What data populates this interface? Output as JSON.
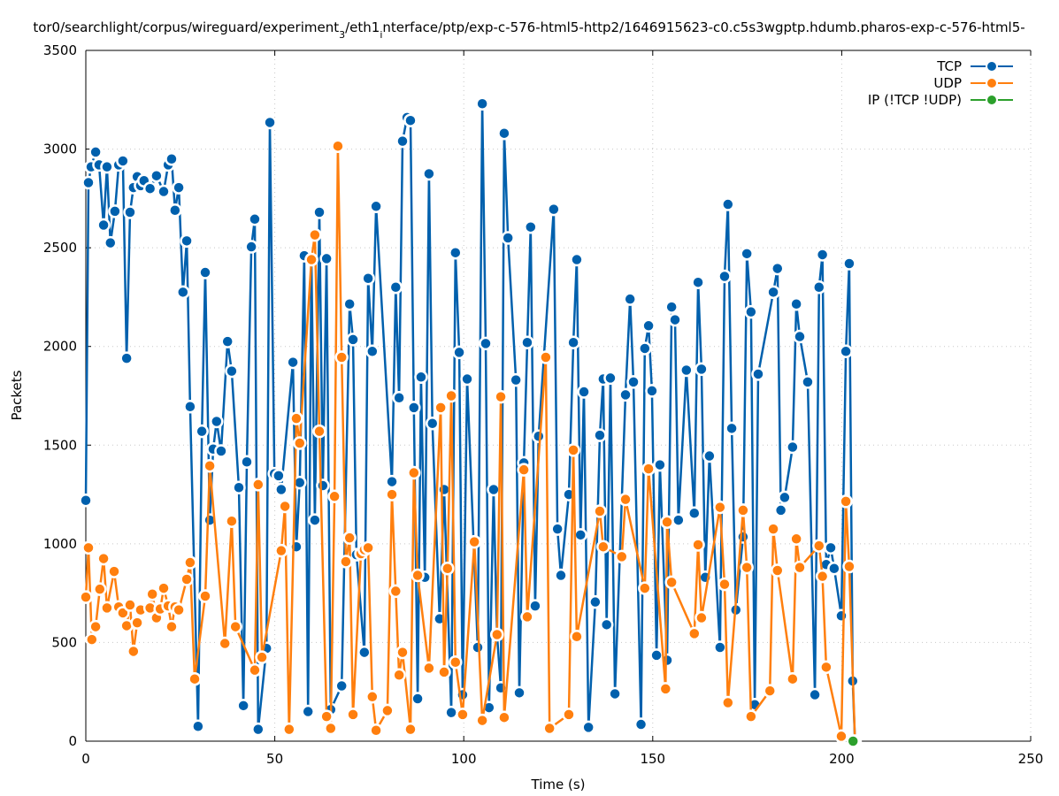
{
  "chart_data": {
    "type": "line",
    "title_parts": [
      {
        "text": "tor0/searchlight/corpus/wireguard/experiment",
        "sub": false
      },
      {
        "text": "3",
        "sub": true
      },
      {
        "text": "/eth1",
        "sub": false
      },
      {
        "text": "i",
        "sub": true
      },
      {
        "text": "nterface/ptp/exp-c-576-html5-http2/1646915623-c0.c5s3wgptp.hdumb.pharos-exp-c-576-html5-",
        "sub": false
      }
    ],
    "xlabel": "Time (s)",
    "ylabel": "Packets",
    "xlim": [
      0,
      250
    ],
    "ylim": [
      0,
      3500
    ],
    "xticks": [
      0,
      50,
      100,
      150,
      200,
      250
    ],
    "yticks": [
      0,
      500,
      1000,
      1500,
      2000,
      2500,
      3000,
      3500
    ],
    "grid": true,
    "legend_position": "top-right",
    "series": [
      {
        "name": "TCP",
        "color": "#0060ad",
        "points": [
          [
            0,
            1220
          ],
          [
            0.7,
            2830
          ],
          [
            1.4,
            2910
          ],
          [
            2.6,
            2985
          ],
          [
            3.5,
            2920
          ],
          [
            4.7,
            2615
          ],
          [
            5.6,
            2910
          ],
          [
            6.5,
            2525
          ],
          [
            7.7,
            2685
          ],
          [
            8.7,
            2920
          ],
          [
            9.8,
            2940
          ],
          [
            10.8,
            1940
          ],
          [
            11.7,
            2680
          ],
          [
            12.6,
            2805
          ],
          [
            13.6,
            2860
          ],
          [
            14.5,
            2815
          ],
          [
            15.4,
            2840
          ],
          [
            17,
            2800
          ],
          [
            18.7,
            2865
          ],
          [
            20.6,
            2785
          ],
          [
            21.8,
            2920
          ],
          [
            22.7,
            2950
          ],
          [
            23.6,
            2690
          ],
          [
            24.6,
            2805
          ],
          [
            25.7,
            2275
          ],
          [
            26.7,
            2535
          ],
          [
            27.6,
            1695
          ],
          [
            29.7,
            75
          ],
          [
            30.7,
            1570
          ],
          [
            31.6,
            2375
          ],
          [
            32.8,
            1120
          ],
          [
            33.7,
            1480
          ],
          [
            34.6,
            1620
          ],
          [
            35.8,
            1470
          ],
          [
            37.5,
            2025
          ],
          [
            38.6,
            1875
          ],
          [
            40.5,
            1285
          ],
          [
            41.7,
            180
          ],
          [
            42.6,
            1415
          ],
          [
            43.8,
            2505
          ],
          [
            44.7,
            2645
          ],
          [
            45.6,
            60
          ],
          [
            47.8,
            470
          ],
          [
            48.7,
            3135
          ],
          [
            49.9,
            1355
          ],
          [
            51,
            1345
          ],
          [
            51.7,
            1275
          ],
          [
            54.8,
            1920
          ],
          [
            55.7,
            985
          ],
          [
            56.6,
            1310
          ],
          [
            57.8,
            2460
          ],
          [
            58.8,
            150
          ],
          [
            59.7,
            2440
          ],
          [
            60.6,
            1120
          ],
          [
            61.8,
            2680
          ],
          [
            62.7,
            1295
          ],
          [
            63.7,
            2445
          ],
          [
            64.8,
            160
          ],
          [
            67.7,
            280
          ],
          [
            69.8,
            2215
          ],
          [
            70.7,
            2035
          ],
          [
            71.6,
            945
          ],
          [
            73.7,
            450
          ],
          [
            74.7,
            2345
          ],
          [
            75.8,
            1975
          ],
          [
            76.8,
            2710
          ],
          [
            81,
            1315
          ],
          [
            82,
            2300
          ],
          [
            82.9,
            1740
          ],
          [
            83.8,
            3040
          ],
          [
            85,
            3160
          ],
          [
            85.9,
            3145
          ],
          [
            86.8,
            1690
          ],
          [
            87.8,
            215
          ],
          [
            88.7,
            1845
          ],
          [
            89.7,
            830
          ],
          [
            90.8,
            2875
          ],
          [
            91.7,
            1610
          ],
          [
            93.6,
            620
          ],
          [
            94.8,
            1275
          ],
          [
            96.7,
            145
          ],
          [
            97.8,
            2475
          ],
          [
            98.8,
            1970
          ],
          [
            99.7,
            235
          ],
          [
            100.9,
            1835
          ],
          [
            103.7,
            475
          ],
          [
            104.9,
            3230
          ],
          [
            105.8,
            2015
          ],
          [
            106.7,
            170
          ],
          [
            107.9,
            1275
          ],
          [
            108.8,
            540
          ],
          [
            109.8,
            270
          ],
          [
            110.7,
            3080
          ],
          [
            111.7,
            2550
          ],
          [
            113.8,
            1830
          ],
          [
            114.7,
            245
          ],
          [
            115.9,
            1410
          ],
          [
            116.8,
            2020
          ],
          [
            117.7,
            2605
          ],
          [
            118.9,
            685
          ],
          [
            119.8,
            1545
          ],
          [
            123.8,
            2695
          ],
          [
            124.8,
            1075
          ],
          [
            125.7,
            840
          ],
          [
            127.8,
            1250
          ],
          [
            129,
            2020
          ],
          [
            129.9,
            2440
          ],
          [
            130.9,
            1045
          ],
          [
            131.8,
            1770
          ],
          [
            133,
            70
          ],
          [
            134.8,
            705
          ],
          [
            136,
            1550
          ],
          [
            136.9,
            1835
          ],
          [
            137.8,
            590
          ],
          [
            138.8,
            1840
          ],
          [
            140,
            240
          ],
          [
            142.8,
            1755
          ],
          [
            144,
            2240
          ],
          [
            144.9,
            1820
          ],
          [
            146.9,
            85
          ],
          [
            147.9,
            1990
          ],
          [
            148.9,
            2105
          ],
          [
            149.8,
            1775
          ],
          [
            151,
            435
          ],
          [
            151.9,
            1400
          ],
          [
            153.8,
            410
          ],
          [
            155,
            2200
          ],
          [
            155.9,
            2135
          ],
          [
            156.8,
            1120
          ],
          [
            158.9,
            1880
          ],
          [
            161,
            1155
          ],
          [
            162,
            2325
          ],
          [
            162.9,
            1885
          ],
          [
            163.9,
            830
          ],
          [
            165,
            1445
          ],
          [
            167.8,
            475
          ],
          [
            169,
            2355
          ],
          [
            169.9,
            2720
          ],
          [
            170.9,
            1585
          ],
          [
            172,
            665
          ],
          [
            173.9,
            1035
          ],
          [
            174.9,
            2470
          ],
          [
            176,
            2175
          ],
          [
            177,
            185
          ],
          [
            177.9,
            1860
          ],
          [
            181.9,
            2275
          ],
          [
            183,
            2395
          ],
          [
            183.9,
            1170
          ],
          [
            184.9,
            1235
          ],
          [
            187,
            1490
          ],
          [
            188,
            2215
          ],
          [
            188.9,
            2050
          ],
          [
            191,
            1820
          ],
          [
            192.9,
            235
          ],
          [
            194,
            2300
          ],
          [
            194.9,
            2465
          ],
          [
            195.9,
            895
          ],
          [
            197.1,
            980
          ],
          [
            198,
            875
          ],
          [
            199.9,
            635
          ],
          [
            201.1,
            1975
          ],
          [
            202,
            2420
          ],
          [
            202.9,
            305
          ],
          [
            203.5,
            0
          ]
        ]
      },
      {
        "name": "UDP",
        "color": "#ff7f0e",
        "points": [
          [
            0,
            730
          ],
          [
            0.7,
            980
          ],
          [
            1.6,
            515
          ],
          [
            2.6,
            580
          ],
          [
            3.7,
            770
          ],
          [
            4.7,
            925
          ],
          [
            5.6,
            675
          ],
          [
            7.5,
            860
          ],
          [
            8.7,
            680
          ],
          [
            9.8,
            650
          ],
          [
            10.8,
            585
          ],
          [
            11.7,
            690
          ],
          [
            12.6,
            455
          ],
          [
            13.6,
            600
          ],
          [
            14.5,
            665
          ],
          [
            17,
            675
          ],
          [
            17.6,
            745
          ],
          [
            18.7,
            625
          ],
          [
            19.7,
            670
          ],
          [
            20.6,
            775
          ],
          [
            21.8,
            685
          ],
          [
            22.7,
            580
          ],
          [
            23.6,
            680
          ],
          [
            24.6,
            665
          ],
          [
            26.7,
            820
          ],
          [
            27.6,
            905
          ],
          [
            28.8,
            315
          ],
          [
            31.6,
            735
          ],
          [
            32.8,
            1395
          ],
          [
            36.8,
            495
          ],
          [
            38.6,
            1115
          ],
          [
            39.6,
            580
          ],
          [
            44.7,
            360
          ],
          [
            45.6,
            1300
          ],
          [
            46.6,
            425
          ],
          [
            51.7,
            965
          ],
          [
            52.7,
            1190
          ],
          [
            53.8,
            60
          ],
          [
            55.7,
            1635
          ],
          [
            56.6,
            1510
          ],
          [
            59.7,
            2440
          ],
          [
            60.6,
            2565
          ],
          [
            61.8,
            1570
          ],
          [
            63.7,
            125
          ],
          [
            64.8,
            65
          ],
          [
            65.8,
            1240
          ],
          [
            66.7,
            3015
          ],
          [
            67.7,
            1945
          ],
          [
            68.8,
            910
          ],
          [
            69.8,
            1030
          ],
          [
            70.7,
            135
          ],
          [
            72.8,
            950
          ],
          [
            73.7,
            970
          ],
          [
            74.7,
            980
          ],
          [
            75.8,
            225
          ],
          [
            76.8,
            55
          ],
          [
            79.8,
            155
          ],
          [
            81,
            1250
          ],
          [
            82,
            760
          ],
          [
            82.9,
            335
          ],
          [
            83.8,
            450
          ],
          [
            85.9,
            60
          ],
          [
            86.8,
            1360
          ],
          [
            87.8,
            840
          ],
          [
            90.8,
            370
          ],
          [
            93.9,
            1690
          ],
          [
            94.8,
            350
          ],
          [
            95.7,
            875
          ],
          [
            96.7,
            1750
          ],
          [
            97.8,
            400
          ],
          [
            99.7,
            135
          ],
          [
            102.8,
            1010
          ],
          [
            104.9,
            105
          ],
          [
            108.8,
            540
          ],
          [
            109.8,
            1745
          ],
          [
            110.7,
            120
          ],
          [
            115.9,
            1375
          ],
          [
            116.8,
            630
          ],
          [
            121.7,
            1945
          ],
          [
            122.7,
            65
          ],
          [
            127.8,
            135
          ],
          [
            129,
            1475
          ],
          [
            129.9,
            530
          ],
          [
            136,
            1165
          ],
          [
            136.9,
            985
          ],
          [
            141.8,
            935
          ],
          [
            142.8,
            1225
          ],
          [
            147.9,
            775
          ],
          [
            148.9,
            1380
          ],
          [
            153.4,
            265
          ],
          [
            153.8,
            1110
          ],
          [
            155,
            805
          ],
          [
            161,
            545
          ],
          [
            162,
            995
          ],
          [
            162.9,
            625
          ],
          [
            167.8,
            1185
          ],
          [
            169,
            795
          ],
          [
            169.9,
            195
          ],
          [
            173.9,
            1170
          ],
          [
            174.9,
            880
          ],
          [
            176,
            125
          ],
          [
            181,
            255
          ],
          [
            181.9,
            1075
          ],
          [
            183,
            865
          ],
          [
            187,
            315
          ],
          [
            188,
            1025
          ],
          [
            188.9,
            880
          ],
          [
            194,
            990
          ],
          [
            194.9,
            835
          ],
          [
            195.9,
            375
          ],
          [
            199.9,
            25
          ],
          [
            201.1,
            1215
          ],
          [
            202,
            885
          ],
          [
            203.5,
            0
          ]
        ]
      },
      {
        "name": "IP (!TCP  !UDP)",
        "color": "#2ca02c",
        "points": [
          [
            203,
            0
          ]
        ]
      }
    ]
  }
}
